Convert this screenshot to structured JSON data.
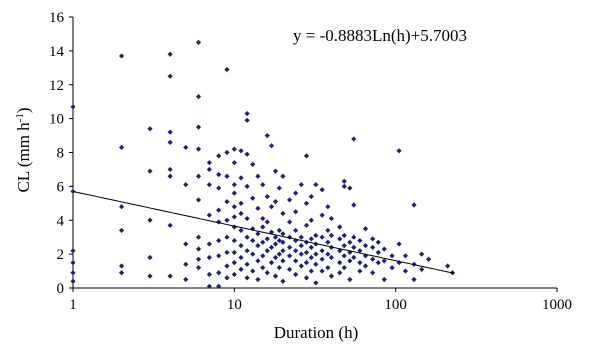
{
  "chart_data": {
    "type": "scatter",
    "title": "",
    "xlabel": "Duration (h)",
    "ylabel_main": "CL (mm h",
    "ylabel_sup": "-1",
    "ylabel_close": ")",
    "x_scale": "log",
    "xlim": [
      1,
      1000
    ],
    "ylim": [
      0,
      16
    ],
    "x_ticks": [
      "1",
      "10",
      "100",
      "1000"
    ],
    "y_ticks": [
      "0",
      "2",
      "4",
      "6",
      "8",
      "10",
      "12",
      "14",
      "16"
    ],
    "grid": false,
    "legend": "none",
    "annotation": "y = -0.8883Ln(h)+5.7003",
    "trendline": {
      "type": "logarithmic",
      "a": -0.8883,
      "b": 5.7003,
      "x_range": [
        1,
        230
      ]
    },
    "marker_color": "#1f1f7a",
    "trend_color": "#000000",
    "points": [
      [
        1,
        10.7
      ],
      [
        1,
        5.7
      ],
      [
        1,
        2.2
      ],
      [
        1,
        1.5
      ],
      [
        1,
        0.9
      ],
      [
        1,
        0.4
      ],
      [
        2,
        13.7
      ],
      [
        2,
        8.3
      ],
      [
        2,
        4.8
      ],
      [
        2,
        3.4
      ],
      [
        2,
        1.3
      ],
      [
        2,
        0.9
      ],
      [
        3,
        9.4
      ],
      [
        3,
        6.9
      ],
      [
        3,
        4.0
      ],
      [
        3,
        1.8
      ],
      [
        3,
        0.7
      ],
      [
        4,
        13.8
      ],
      [
        4,
        12.5
      ],
      [
        4,
        9.2
      ],
      [
        4,
        8.6
      ],
      [
        4,
        7.0
      ],
      [
        4,
        6.6
      ],
      [
        4,
        3.7
      ],
      [
        4,
        0.7
      ],
      [
        5,
        8.3
      ],
      [
        5,
        6.1
      ],
      [
        5,
        2.6
      ],
      [
        5,
        1.4
      ],
      [
        5,
        0.5
      ],
      [
        6,
        14.5
      ],
      [
        6,
        11.3
      ],
      [
        6,
        9.5
      ],
      [
        6,
        8.2
      ],
      [
        6,
        6.6
      ],
      [
        6,
        5.2
      ],
      [
        6,
        3.0
      ],
      [
        6,
        2.3
      ],
      [
        6,
        1.7
      ],
      [
        6,
        1.2
      ],
      [
        7,
        7.4
      ],
      [
        7,
        7.0
      ],
      [
        7,
        6.1
      ],
      [
        7,
        4.3
      ],
      [
        7,
        2.6
      ],
      [
        7,
        1.8
      ],
      [
        7,
        0.8
      ],
      [
        7,
        0.1
      ],
      [
        8,
        7.8
      ],
      [
        8,
        6.7
      ],
      [
        8,
        5.9
      ],
      [
        8,
        4.6
      ],
      [
        8,
        3.9
      ],
      [
        8,
        2.8
      ],
      [
        8,
        1.9
      ],
      [
        8,
        0.9
      ],
      [
        8,
        0.1
      ],
      [
        9,
        12.9
      ],
      [
        9,
        8.0
      ],
      [
        9,
        6.6
      ],
      [
        9,
        5.1
      ],
      [
        9,
        4.0
      ],
      [
        9,
        3.0
      ],
      [
        9,
        2.1
      ],
      [
        9,
        1.3
      ],
      [
        9,
        0.6
      ],
      [
        10,
        8.2
      ],
      [
        10,
        7.4
      ],
      [
        10,
        6.1
      ],
      [
        10,
        5.6
      ],
      [
        10,
        4.8
      ],
      [
        10,
        4.2
      ],
      [
        10,
        3.6
      ],
      [
        10,
        2.8
      ],
      [
        10,
        2.1
      ],
      [
        10,
        1.5
      ],
      [
        10,
        0.8
      ],
      [
        11,
        8.1
      ],
      [
        11,
        6.5
      ],
      [
        11,
        5.0
      ],
      [
        11,
        4.4
      ],
      [
        11,
        3.4
      ],
      [
        11,
        2.5
      ],
      [
        11,
        1.8
      ],
      [
        11,
        1.1
      ],
      [
        12,
        10.3
      ],
      [
        12,
        9.9
      ],
      [
        12,
        7.9
      ],
      [
        12,
        6.0
      ],
      [
        12,
        4.1
      ],
      [
        12,
        3.0
      ],
      [
        12,
        2.2
      ],
      [
        12,
        1.4
      ],
      [
        12,
        0.6
      ],
      [
        13,
        7.3
      ],
      [
        13,
        5.3
      ],
      [
        13,
        3.5
      ],
      [
        13,
        2.8
      ],
      [
        13,
        2.0
      ],
      [
        13,
        1.0
      ],
      [
        14,
        6.6
      ],
      [
        14,
        4.7
      ],
      [
        14,
        3.2
      ],
      [
        14,
        2.5
      ],
      [
        14,
        1.6
      ],
      [
        14,
        0.5
      ],
      [
        15,
        6.1
      ],
      [
        15,
        4.1
      ],
      [
        15,
        3.6
      ],
      [
        15,
        2.7
      ],
      [
        15,
        1.9
      ],
      [
        15,
        1.2
      ],
      [
        16,
        9.0
      ],
      [
        16,
        5.4
      ],
      [
        16,
        3.9
      ],
      [
        16,
        2.9
      ],
      [
        16,
        2.2
      ],
      [
        16,
        0.9
      ],
      [
        17,
        8.4
      ],
      [
        17,
        4.8
      ],
      [
        17,
        3.3
      ],
      [
        17,
        2.4
      ],
      [
        17,
        1.5
      ],
      [
        18,
        6.9
      ],
      [
        18,
        5.1
      ],
      [
        18,
        3.0
      ],
      [
        18,
        2.6
      ],
      [
        18,
        1.8
      ],
      [
        18,
        0.7
      ],
      [
        19,
        5.9
      ],
      [
        19,
        3.4
      ],
      [
        19,
        2.8
      ],
      [
        19,
        2.0
      ],
      [
        19,
        1.2
      ],
      [
        20,
        6.6
      ],
      [
        20,
        4.4
      ],
      [
        20,
        3.2
      ],
      [
        20,
        2.7
      ],
      [
        20,
        2.2
      ],
      [
        20,
        1.6
      ],
      [
        20,
        0.4
      ],
      [
        22,
        5.2
      ],
      [
        22,
        3.9
      ],
      [
        22,
        3.0
      ],
      [
        22,
        2.4
      ],
      [
        22,
        1.9
      ],
      [
        22,
        1.1
      ],
      [
        24,
        5.6
      ],
      [
        24,
        4.5
      ],
      [
        24,
        3.4
      ],
      [
        24,
        2.8
      ],
      [
        24,
        2.2
      ],
      [
        24,
        1.6
      ],
      [
        24,
        0.8
      ],
      [
        26,
        6.1
      ],
      [
        26,
        3.0
      ],
      [
        26,
        2.5
      ],
      [
        26,
        2.0
      ],
      [
        26,
        1.3
      ],
      [
        28,
        7.8
      ],
      [
        28,
        5.0
      ],
      [
        28,
        3.7
      ],
      [
        28,
        2.7
      ],
      [
        28,
        2.1
      ],
      [
        28,
        1.5
      ],
      [
        28,
        0.6
      ],
      [
        30,
        5.4
      ],
      [
        30,
        4.0
      ],
      [
        30,
        2.9
      ],
      [
        30,
        2.4
      ],
      [
        30,
        1.8
      ],
      [
        30,
        1.0
      ],
      [
        32,
        6.1
      ],
      [
        32,
        3.1
      ],
      [
        32,
        2.6
      ],
      [
        32,
        2.0
      ],
      [
        32,
        1.4
      ],
      [
        32,
        0.3
      ],
      [
        35,
        5.8
      ],
      [
        35,
        4.3
      ],
      [
        35,
        3.0
      ],
      [
        35,
        2.2
      ],
      [
        35,
        1.7
      ],
      [
        35,
        1.0
      ],
      [
        38,
        4.8
      ],
      [
        38,
        3.4
      ],
      [
        38,
        2.7
      ],
      [
        38,
        2.0
      ],
      [
        38,
        1.2
      ],
      [
        40,
        4.1
      ],
      [
        40,
        3.1
      ],
      [
        40,
        2.4
      ],
      [
        40,
        1.8
      ],
      [
        40,
        0.7
      ],
      [
        45,
        3.6
      ],
      [
        45,
        2.9
      ],
      [
        45,
        2.2
      ],
      [
        45,
        1.5
      ],
      [
        45,
        0.9
      ],
      [
        48,
        6.3
      ],
      [
        48,
        6.0
      ],
      [
        48,
        3.1
      ],
      [
        48,
        2.5
      ],
      [
        48,
        1.9
      ],
      [
        48,
        1.2
      ],
      [
        52,
        5.9
      ],
      [
        52,
        2.7
      ],
      [
        52,
        2.1
      ],
      [
        52,
        1.6
      ],
      [
        52,
        0.5
      ],
      [
        55,
        8.8
      ],
      [
        55,
        4.9
      ],
      [
        55,
        3.0
      ],
      [
        55,
        2.4
      ],
      [
        55,
        1.8
      ],
      [
        60,
        2.8
      ],
      [
        60,
        2.2
      ],
      [
        60,
        1.5
      ],
      [
        60,
        1.0
      ],
      [
        65,
        3.5
      ],
      [
        65,
        2.5
      ],
      [
        65,
        1.9
      ],
      [
        65,
        1.3
      ],
      [
        72,
        2.9
      ],
      [
        72,
        2.4
      ],
      [
        72,
        1.7
      ],
      [
        72,
        0.9
      ],
      [
        78,
        2.7
      ],
      [
        78,
        2.1
      ],
      [
        78,
        1.5
      ],
      [
        85,
        2.3
      ],
      [
        85,
        1.6
      ],
      [
        85,
        0.5
      ],
      [
        95,
        1.9
      ],
      [
        95,
        1.2
      ],
      [
        105,
        8.1
      ],
      [
        105,
        2.6
      ],
      [
        105,
        1.5
      ],
      [
        115,
        1.9
      ],
      [
        115,
        1.0
      ],
      [
        130,
        4.9
      ],
      [
        130,
        1.4
      ],
      [
        130,
        0.5
      ],
      [
        145,
        2.0
      ],
      [
        145,
        1.1
      ],
      [
        160,
        1.7
      ],
      [
        210,
        1.3
      ],
      [
        225,
        0.9
      ]
    ]
  }
}
